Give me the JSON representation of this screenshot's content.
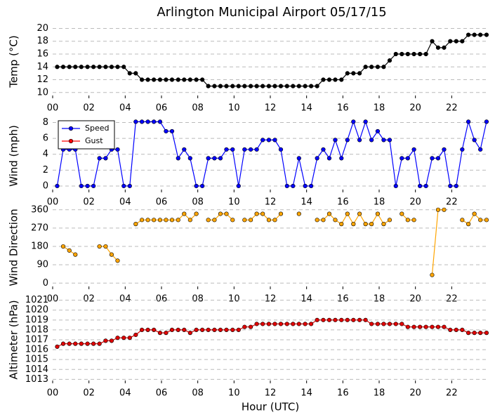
{
  "chart_data": [
    {
      "type": "line",
      "title": "Arlington Municipal Airport 05/17/15",
      "ylabel": "Temp (°C)",
      "x": [
        0.25,
        0.58,
        0.92,
        1.25,
        1.58,
        1.92,
        2.25,
        2.58,
        2.92,
        3.25,
        3.58,
        3.92,
        4.25,
        4.58,
        4.92,
        5.25,
        5.58,
        5.92,
        6.25,
        6.58,
        6.92,
        7.25,
        7.58,
        7.92,
        8.25,
        8.58,
        8.92,
        9.25,
        9.58,
        9.92,
        10.25,
        10.58,
        10.92,
        11.25,
        11.58,
        11.92,
        12.25,
        12.58,
        12.92,
        13.25,
        13.58,
        13.92,
        14.25,
        14.58,
        14.92,
        15.25,
        15.58,
        15.92,
        16.25,
        16.58,
        16.92,
        17.25,
        17.58,
        17.92,
        18.25,
        18.58,
        18.92,
        19.25,
        19.58,
        19.92,
        20.25,
        20.58,
        20.92,
        21.25,
        21.58,
        21.92,
        22.25,
        22.58,
        22.92,
        23.25,
        23.58,
        23.92
      ],
      "series": [
        {
          "name": "Temp",
          "color": "#000000",
          "values": [
            14,
            14,
            14,
            14,
            14,
            14,
            14,
            14,
            14,
            14,
            14,
            14,
            13,
            13,
            12,
            12,
            12,
            12,
            12,
            12,
            12,
            12,
            12,
            12,
            12,
            11,
            11,
            11,
            11,
            11,
            11,
            11,
            11,
            11,
            11,
            11,
            11,
            11,
            11,
            11,
            11,
            11,
            11,
            11,
            12,
            12,
            12,
            12,
            13,
            13,
            13,
            14,
            14,
            14,
            14,
            15,
            16,
            16,
            16,
            16,
            16,
            16,
            18,
            17,
            17,
            18,
            18,
            18,
            19,
            19,
            19,
            19
          ]
        }
      ],
      "xlim": [
        0,
        24
      ],
      "xticks": [
        {
          "value": 0,
          "label": "00"
        },
        {
          "value": 2,
          "label": "02"
        },
        {
          "value": 4,
          "label": "04"
        },
        {
          "value": 6,
          "label": "06"
        },
        {
          "value": 8,
          "label": "08"
        },
        {
          "value": 10,
          "label": "10"
        },
        {
          "value": 12,
          "label": "12"
        },
        {
          "value": 14,
          "label": "14"
        },
        {
          "value": 16,
          "label": "16"
        },
        {
          "value": 18,
          "label": "18"
        },
        {
          "value": 20,
          "label": "20"
        },
        {
          "value": 22,
          "label": "22"
        }
      ],
      "ylim": [
        9.1,
        20.6
      ],
      "yticks": [
        10,
        12,
        14,
        16,
        18,
        20
      ],
      "grid": true
    },
    {
      "type": "line",
      "ylabel": "Wind (mph)",
      "legend": "upper left",
      "x": [
        0.25,
        0.58,
        0.92,
        1.25,
        1.58,
        1.92,
        2.25,
        2.58,
        2.92,
        3.25,
        3.58,
        3.92,
        4.25,
        4.58,
        4.92,
        5.25,
        5.58,
        5.92,
        6.25,
        6.58,
        6.92,
        7.25,
        7.58,
        7.92,
        8.25,
        8.58,
        8.92,
        9.25,
        9.58,
        9.92,
        10.25,
        10.58,
        10.92,
        11.25,
        11.58,
        11.92,
        12.25,
        12.58,
        12.92,
        13.25,
        13.58,
        13.92,
        14.25,
        14.58,
        14.92,
        15.25,
        15.58,
        15.92,
        16.25,
        16.58,
        16.92,
        17.25,
        17.58,
        17.92,
        18.25,
        18.58,
        18.92,
        19.25,
        19.58,
        19.92,
        20.25,
        20.58,
        20.92,
        21.25,
        21.58,
        21.92,
        22.25,
        22.58,
        22.92,
        23.25,
        23.58,
        23.92
      ],
      "series": [
        {
          "name": "Speed",
          "color": "#0000ff",
          "values": [
            0,
            4.6,
            4.6,
            4.6,
            0,
            0,
            0,
            3.5,
            3.5,
            4.6,
            4.6,
            0,
            0,
            8.1,
            8.1,
            8.1,
            8.1,
            8.1,
            6.9,
            6.9,
            3.5,
            4.6,
            3.5,
            0,
            0,
            3.5,
            3.5,
            3.5,
            4.6,
            4.6,
            0,
            4.6,
            4.6,
            4.6,
            5.8,
            5.8,
            5.8,
            4.6,
            0,
            0,
            3.5,
            0,
            0,
            3.5,
            4.6,
            3.5,
            5.8,
            3.5,
            5.8,
            8.1,
            5.8,
            8.1,
            5.8,
            6.9,
            5.8,
            5.8,
            0,
            3.5,
            3.5,
            4.6,
            0,
            0,
            3.5,
            3.5,
            4.6,
            0,
            0,
            4.6,
            8.1,
            5.8,
            4.6,
            8.1
          ]
        },
        {
          "name": "Gust",
          "color": "#ff0000",
          "values": [
            null,
            null,
            null,
            null,
            null,
            null,
            null,
            null,
            null,
            null,
            null,
            null,
            null,
            null,
            null,
            null,
            null,
            null,
            null,
            null,
            null,
            null,
            null,
            null,
            null,
            null,
            null,
            null,
            null,
            null,
            null,
            null,
            null,
            null,
            null,
            null,
            null,
            null,
            null,
            null,
            null,
            null,
            null,
            null,
            null,
            null,
            null,
            null,
            null,
            null,
            null,
            null,
            null,
            null,
            null,
            null,
            null,
            null,
            null,
            null,
            null,
            null,
            null,
            null,
            null,
            null,
            null,
            null,
            null,
            null,
            null,
            null
          ]
        }
      ],
      "xlim": [
        0,
        24
      ],
      "xticks": [
        {
          "value": 0,
          "label": "00"
        },
        {
          "value": 2,
          "label": "02"
        },
        {
          "value": 4,
          "label": "04"
        },
        {
          "value": 6,
          "label": "06"
        },
        {
          "value": 8,
          "label": "08"
        },
        {
          "value": 10,
          "label": "10"
        },
        {
          "value": 12,
          "label": "12"
        },
        {
          "value": 14,
          "label": "14"
        },
        {
          "value": 16,
          "label": "16"
        },
        {
          "value": 18,
          "label": "18"
        },
        {
          "value": 20,
          "label": "20"
        },
        {
          "value": 22,
          "label": "22"
        }
      ],
      "ylim": [
        -0.8,
        8.4
      ],
      "yticks": [
        0,
        2,
        4,
        6,
        8
      ],
      "grid": true
    },
    {
      "type": "line",
      "ylabel": "Wind Direction",
      "x": [
        0.25,
        0.58,
        0.92,
        1.25,
        1.58,
        1.92,
        2.25,
        2.58,
        2.92,
        3.25,
        3.58,
        3.92,
        4.25,
        4.58,
        4.92,
        5.25,
        5.58,
        5.92,
        6.25,
        6.58,
        6.92,
        7.25,
        7.58,
        7.92,
        8.25,
        8.58,
        8.92,
        9.25,
        9.58,
        9.92,
        10.25,
        10.58,
        10.92,
        11.25,
        11.58,
        11.92,
        12.25,
        12.58,
        12.92,
        13.25,
        13.58,
        13.92,
        14.25,
        14.58,
        14.92,
        15.25,
        15.58,
        15.92,
        16.25,
        16.58,
        16.92,
        17.25,
        17.58,
        17.92,
        18.25,
        18.58,
        18.92,
        19.25,
        19.58,
        19.92,
        20.25,
        20.58,
        20.92,
        21.25,
        21.58,
        21.92,
        22.25,
        22.58,
        22.92,
        23.25,
        23.58,
        23.92
      ],
      "series": [
        {
          "name": "Direction",
          "color": "#ffa500",
          "values": [
            null,
            180,
            160,
            140,
            null,
            null,
            null,
            180,
            180,
            140,
            110,
            null,
            null,
            290,
            310,
            310,
            310,
            310,
            310,
            310,
            310,
            340,
            310,
            340,
            null,
            310,
            310,
            340,
            340,
            310,
            null,
            310,
            310,
            340,
            340,
            310,
            310,
            340,
            null,
            null,
            340,
            null,
            null,
            310,
            310,
            340,
            310,
            290,
            340,
            290,
            340,
            290,
            290,
            340,
            290,
            310,
            null,
            340,
            310,
            310,
            null,
            null,
            40,
            360,
            360,
            null,
            null,
            310,
            290,
            340,
            310,
            310
          ]
        }
      ],
      "xlim": [
        0,
        24
      ],
      "xticks": [
        {
          "value": 0,
          "label": "00"
        },
        {
          "value": 2,
          "label": "02"
        },
        {
          "value": 4,
          "label": "04"
        },
        {
          "value": 6,
          "label": "06"
        },
        {
          "value": 8,
          "label": "08"
        },
        {
          "value": 10,
          "label": "10"
        },
        {
          "value": 12,
          "label": "12"
        },
        {
          "value": 14,
          "label": "14"
        },
        {
          "value": 16,
          "label": "16"
        },
        {
          "value": 18,
          "label": "18"
        },
        {
          "value": 20,
          "label": "20"
        },
        {
          "value": 22,
          "label": "22"
        }
      ],
      "ylim": [
        -30,
        380
      ],
      "yticks": [
        0,
        90,
        180,
        270,
        360
      ],
      "grid": true
    },
    {
      "type": "line",
      "ylabel": "Altimeter (hPa)",
      "xlabel": "Hour (UTC)",
      "x": [
        0.25,
        0.58,
        0.92,
        1.25,
        1.58,
        1.92,
        2.25,
        2.58,
        2.92,
        3.25,
        3.58,
        3.92,
        4.25,
        4.58,
        4.92,
        5.25,
        5.58,
        5.92,
        6.25,
        6.58,
        6.92,
        7.25,
        7.58,
        7.92,
        8.25,
        8.58,
        8.92,
        9.25,
        9.58,
        9.92,
        10.25,
        10.58,
        10.92,
        11.25,
        11.58,
        11.92,
        12.25,
        12.58,
        12.92,
        13.25,
        13.58,
        13.92,
        14.25,
        14.58,
        14.92,
        15.25,
        15.58,
        15.92,
        16.25,
        16.58,
        16.92,
        17.25,
        17.58,
        17.92,
        18.25,
        18.58,
        18.92,
        19.25,
        19.58,
        19.92,
        20.25,
        20.58,
        20.92,
        21.25,
        21.58,
        21.92,
        22.25,
        22.58,
        22.92,
        23.25,
        23.58,
        23.92
      ],
      "series": [
        {
          "name": "Altimeter",
          "color": "#e00000",
          "values": [
            1016.3,
            1016.6,
            1016.6,
            1016.6,
            1016.6,
            1016.6,
            1016.6,
            1016.6,
            1016.9,
            1016.9,
            1017.2,
            1017.2,
            1017.2,
            1017.5,
            1018.0,
            1018.0,
            1018.0,
            1017.7,
            1017.7,
            1018.0,
            1018.0,
            1018.0,
            1017.7,
            1018.0,
            1018.0,
            1018.0,
            1018.0,
            1018.0,
            1018.0,
            1018.0,
            1018.0,
            1018.3,
            1018.3,
            1018.6,
            1018.6,
            1018.6,
            1018.6,
            1018.6,
            1018.6,
            1018.6,
            1018.6,
            1018.6,
            1018.6,
            1019.0,
            1019.0,
            1019.0,
            1019.0,
            1019.0,
            1019.0,
            1019.0,
            1019.0,
            1019.0,
            1018.6,
            1018.6,
            1018.6,
            1018.6,
            1018.6,
            1018.6,
            1018.3,
            1018.3,
            1018.3,
            1018.3,
            1018.3,
            1018.3,
            1018.3,
            1018.0,
            1018.0,
            1018.0,
            1017.7,
            1017.7,
            1017.7,
            1017.7
          ]
        }
      ],
      "xlim": [
        0,
        24
      ],
      "xticks": [
        {
          "value": 0,
          "label": "00"
        },
        {
          "value": 2,
          "label": "02"
        },
        {
          "value": 4,
          "label": "04"
        },
        {
          "value": 6,
          "label": "06"
        },
        {
          "value": 8,
          "label": "08"
        },
        {
          "value": 10,
          "label": "10"
        },
        {
          "value": 12,
          "label": "12"
        },
        {
          "value": 14,
          "label": "14"
        },
        {
          "value": 16,
          "label": "16"
        },
        {
          "value": 18,
          "label": "18"
        },
        {
          "value": 20,
          "label": "20"
        },
        {
          "value": 22,
          "label": "22"
        }
      ],
      "ylim": [
        1012.6,
        1021.4
      ],
      "yticks": [
        1013,
        1014,
        1015,
        1016,
        1017,
        1018,
        1019,
        1020,
        1021
      ],
      "grid": true
    }
  ]
}
